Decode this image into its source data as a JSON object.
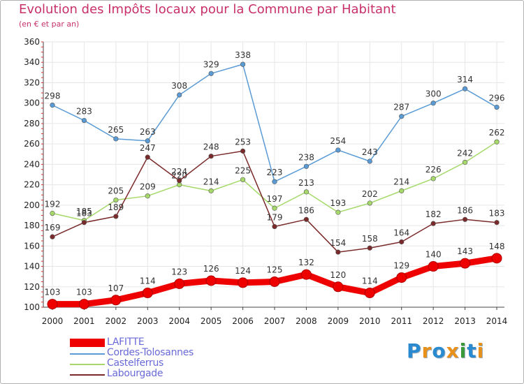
{
  "header": {
    "title": "Evolution des Impôts locaux pour la Commune par Habitant",
    "subtitle": "(en € et par an)"
  },
  "logo": {
    "text": "Proxiti",
    "colors": [
      "#2a8ad0",
      "#e8901a",
      "#2a8ad0",
      "#e8901a",
      "#3a9a3a",
      "#2a8ad0",
      "#e8901a"
    ]
  },
  "chart_data": {
    "type": "line",
    "x": [
      "2000",
      "2001",
      "2002",
      "2003",
      "2004",
      "2005",
      "2006",
      "2007",
      "2008",
      "2009",
      "2010",
      "2011",
      "2012",
      "2013",
      "2014"
    ],
    "ylim": [
      100,
      360
    ],
    "yticks": [
      100,
      120,
      140,
      160,
      180,
      200,
      220,
      240,
      260,
      280,
      300,
      320,
      340,
      360
    ],
    "grid": true,
    "legend_position": "bottom-left",
    "series": [
      {
        "name": "Cordes-Tolosannes",
        "color": "#5a9bd5",
        "values": [
          298,
          283,
          265,
          263,
          308,
          329,
          338,
          223,
          238,
          254,
          243,
          287,
          300,
          314,
          296
        ]
      },
      {
        "name": "Castelferrus",
        "color": "#a6d96a",
        "values": [
          192,
          185,
          205,
          209,
          220,
          214,
          225,
          197,
          213,
          193,
          202,
          214,
          226,
          242,
          262
        ]
      },
      {
        "name": "Labourgade",
        "color": "#7a2a2a",
        "values": [
          169,
          183,
          189,
          247,
          224,
          248,
          253,
          179,
          186,
          154,
          158,
          164,
          182,
          186,
          183
        ]
      },
      {
        "name": "LAFITTE",
        "color": "#ee0000",
        "values": [
          103,
          103,
          107,
          114,
          123,
          126,
          124,
          125,
          132,
          120,
          114,
          129,
          140,
          143,
          148
        ]
      }
    ]
  }
}
